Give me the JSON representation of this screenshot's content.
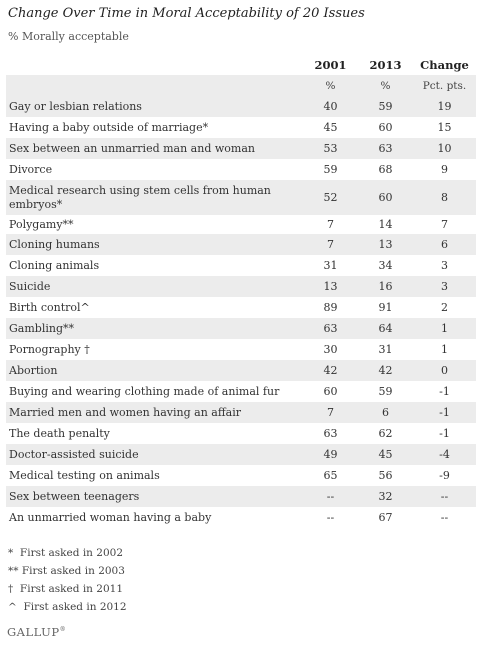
{
  "title": "Change Over Time in Moral Acceptability of 20 Issues",
  "subtitle": "% Morally acceptable",
  "headers": {
    "y1": "2001",
    "y2": "2013",
    "change": "Change"
  },
  "subheaders": {
    "y1": "%",
    "y2": "%",
    "change": "Pct. pts."
  },
  "rows": [
    {
      "issue": "Gay or lesbian relations",
      "y1": "40",
      "y2": "59",
      "change": "19",
      "h": 21
    },
    {
      "issue": "Having a baby outside of marriage*",
      "y1": "45",
      "y2": "60",
      "change": "15",
      "h": 21
    },
    {
      "issue": "Sex between an unmarried man and woman",
      "y1": "53",
      "y2": "63",
      "change": "10",
      "h": 21
    },
    {
      "issue": "Divorce",
      "y1": "59",
      "y2": "68",
      "change": "9",
      "h": 21
    },
    {
      "issue": "Medical research using stem cells from human embryos*",
      "y1": "52",
      "y2": "60",
      "change": "8",
      "h": 35
    },
    {
      "issue": "Polygamy**",
      "y1": "7",
      "y2": "14",
      "change": "7",
      "h": 19
    },
    {
      "issue": "Cloning humans",
      "y1": "7",
      "y2": "13",
      "change": "6",
      "h": 21
    },
    {
      "issue": "Cloning animals",
      "y1": "31",
      "y2": "34",
      "change": "3",
      "h": 21
    },
    {
      "issue": "Suicide",
      "y1": "13",
      "y2": "16",
      "change": "3",
      "h": 21
    },
    {
      "issue": "Birth control^",
      "y1": "89",
      "y2": "91",
      "change": "2",
      "h": 21
    },
    {
      "issue": "Gambling**",
      "y1": "63",
      "y2": "64",
      "change": "1",
      "h": 21
    },
    {
      "issue": "Pornography †",
      "y1": "30",
      "y2": "31",
      "change": "1",
      "h": 21
    },
    {
      "issue": "Abortion",
      "y1": "42",
      "y2": "42",
      "change": "0",
      "h": 21
    },
    {
      "issue": "Buying and wearing clothing made of animal fur",
      "y1": "60",
      "y2": "59",
      "change": "-1",
      "h": 21
    },
    {
      "issue": "Married men and women having an affair",
      "y1": "7",
      "y2": "6",
      "change": "-1",
      "h": 21
    },
    {
      "issue": "The death penalty",
      "y1": "63",
      "y2": "62",
      "change": "-1",
      "h": 21
    },
    {
      "issue": "Doctor-assisted suicide",
      "y1": "49",
      "y2": "45",
      "change": "-4",
      "h": 21
    },
    {
      "issue": "Medical testing on animals",
      "y1": "65",
      "y2": "56",
      "change": "-9",
      "h": 21
    },
    {
      "issue": "Sex between teenagers",
      "y1": "--",
      "y2": "32",
      "change": "--",
      "h": 21
    },
    {
      "issue": "An unmarried woman having a baby",
      "y1": "--",
      "y2": "67",
      "change": "--",
      "h": 21
    }
  ],
  "footnotes": [
    "*  First asked in 2002",
    "** First asked in 2003",
    "†  First asked in 2011",
    "^  First asked in 2012"
  ],
  "logo": "GALLUP"
}
